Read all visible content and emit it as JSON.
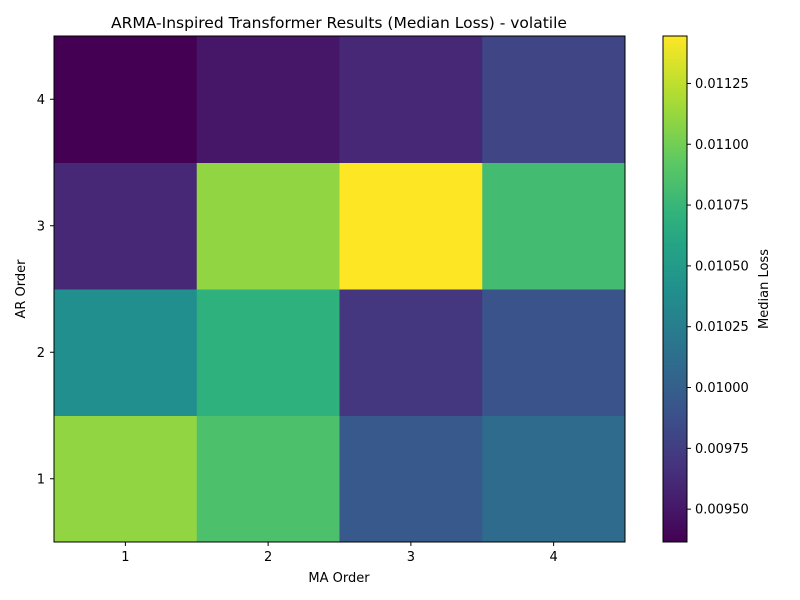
{
  "chart_data": {
    "type": "heatmap",
    "title": "ARMA-Inspired Transformer Results (Median Loss) - volatile",
    "xlabel": "MA Order",
    "ylabel": "AR Order",
    "x_categories": [
      "1",
      "2",
      "3",
      "4"
    ],
    "y_categories": [
      "1",
      "2",
      "3",
      "4"
    ],
    "values": [
      [
        0.0111,
        0.01085,
        0.00995,
        0.0101
      ],
      [
        0.0104,
        0.0107,
        0.0097,
        0.0099
      ],
      [
        0.0096,
        0.0111,
        0.01145,
        0.0108
      ],
      [
        0.00936,
        0.0095,
        0.0096,
        0.0098
      ]
    ],
    "colormap": "viridis",
    "colorbar": {
      "label": "Median Loss",
      "min": 0.009365,
      "max": 0.011445,
      "ticks": [
        "0.00950",
        "0.00975",
        "0.01000",
        "0.01025",
        "0.01050",
        "0.01075",
        "0.01100",
        "0.01125"
      ]
    },
    "grid": false
  }
}
